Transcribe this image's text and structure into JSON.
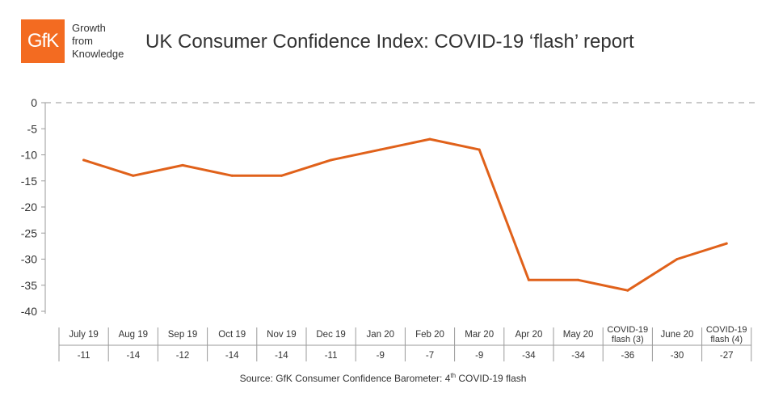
{
  "header": {
    "logo_text": "GfK",
    "tagline": [
      "Growth",
      "from",
      "Knowledge"
    ],
    "title": "UK Consumer Confidence Index: COVID-19 ‘flash’ report"
  },
  "colors": {
    "brand": "#f36b21",
    "line": "#e0611a",
    "axis": "#9a9a9a",
    "zero_line": "#aaaaaa"
  },
  "chart_data": {
    "type": "line",
    "categories": [
      [
        "July 19"
      ],
      [
        "Aug 19"
      ],
      [
        "Sep 19"
      ],
      [
        "Oct 19"
      ],
      [
        "Nov 19"
      ],
      [
        "Dec 19"
      ],
      [
        "Jan 20"
      ],
      [
        "Feb 20"
      ],
      [
        "Mar 20"
      ],
      [
        "Apr 20"
      ],
      [
        "May 20"
      ],
      [
        "COVID-19",
        "flash (3)"
      ],
      [
        "June 20"
      ],
      [
        "COVID-19",
        "flash (4)"
      ]
    ],
    "series": [
      {
        "values": [
          -11,
          -14,
          -12,
          -14,
          -14,
          -11,
          -9,
          -7,
          -9,
          -34,
          -34,
          -36,
          -30,
          -27
        ]
      }
    ],
    "table_values": [
      "-11",
      "-14",
      "-12",
      "-14",
      "-14",
      "-11",
      "-9",
      "-7",
      "-9",
      "-34",
      "-34",
      "-36",
      "-30",
      "-27"
    ],
    "yticks": [
      "0",
      "-5",
      "-10",
      "-15",
      "-20",
      "-25",
      "-30",
      "-35",
      "-40"
    ],
    "ylim": [
      -40,
      0
    ],
    "zero_line": "dashed",
    "grid": false
  },
  "footer": {
    "source_prefix": "Source: GfK Consumer Confidence Barometer: 4",
    "source_sup": "th",
    "source_suffix": " COVID-19 flash"
  }
}
